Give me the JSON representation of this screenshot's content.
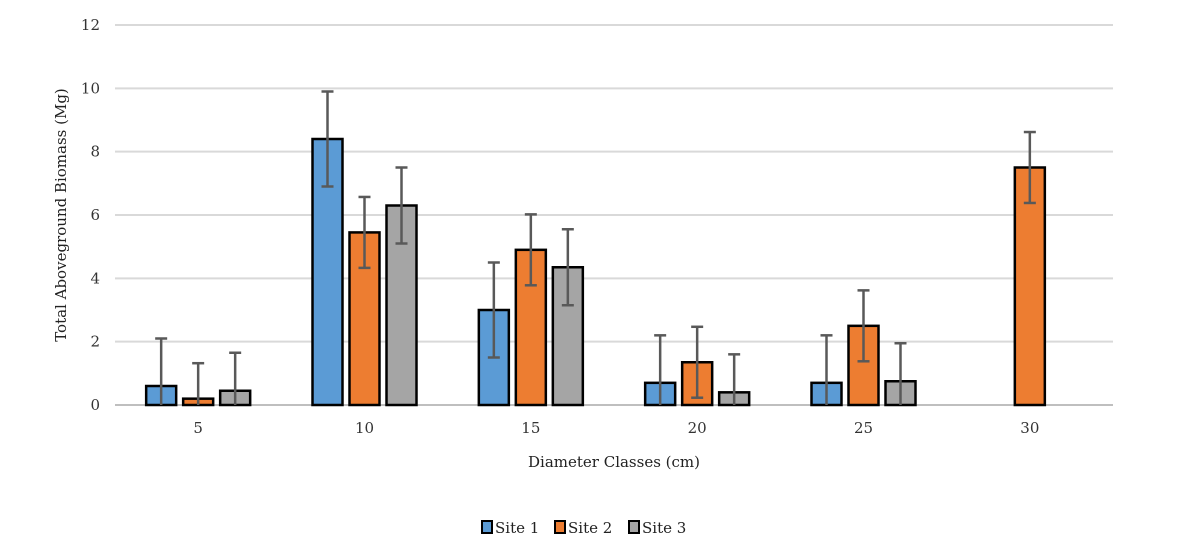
{
  "chart_data": {
    "type": "bar",
    "title": "",
    "xlabel": "Diameter Classes (cm)",
    "ylabel": "Total Aboveground Biomass (Mg)",
    "ylim": [
      0,
      12
    ],
    "yticks": [
      "0",
      "2",
      "4",
      "6",
      "8",
      "10",
      "12"
    ],
    "categories": [
      "5",
      "10",
      "15",
      "20",
      "25",
      "30"
    ],
    "grid": true,
    "legend_position": "bottom",
    "series": [
      {
        "name": "Site 1",
        "color": "#5b9bd5",
        "values": [
          0.6,
          8.4,
          3.0,
          0.7,
          0.7,
          null
        ],
        "errors": [
          1.5,
          1.5,
          1.5,
          1.5,
          1.5,
          null
        ]
      },
      {
        "name": "Site 2",
        "color": "#ed7d31",
        "values": [
          0.2,
          5.45,
          4.9,
          1.35,
          2.5,
          7.5
        ],
        "errors": [
          1.12,
          1.12,
          1.12,
          1.12,
          1.12,
          1.12
        ]
      },
      {
        "name": "Site 3",
        "color": "#a5a5a5",
        "values": [
          0.45,
          6.3,
          4.35,
          0.4,
          0.75,
          null
        ],
        "errors": [
          1.2,
          1.2,
          1.2,
          1.2,
          1.2,
          null
        ]
      }
    ]
  }
}
